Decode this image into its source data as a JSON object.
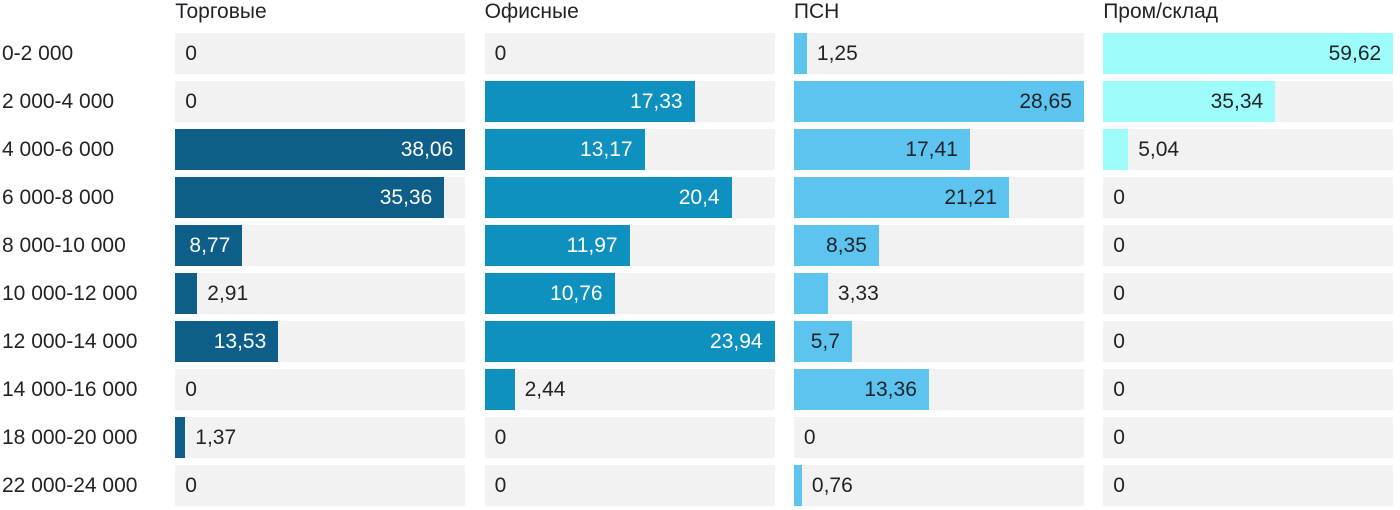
{
  "chart_data": {
    "type": "bar",
    "orientation": "horizontal",
    "title": "",
    "normalization": "per_series_max",
    "grid": false,
    "legend_position": "column-headers-top",
    "track_color": "#f2f2f2",
    "text_color": "#1f2328",
    "categories": [
      "0-2 000",
      "2 000-4 000",
      "4 000-6 000",
      "6 000-8 000",
      "8 000-10 000",
      "10 000-12 000",
      "12 000-14 000",
      "14 000-16 000",
      "18 000-20 000",
      "22 000-24 000"
    ],
    "series": [
      {
        "name": "Торговые",
        "color": "#0d5e88",
        "inside_text_color": "#ffffff",
        "values": [
          0,
          0,
          38.06,
          35.36,
          8.77,
          2.91,
          13.53,
          0,
          1.37,
          0
        ],
        "labels": [
          "0",
          "0",
          "38,06",
          "35,36",
          "8,77",
          "2,91",
          "13,53",
          "0",
          "1,37",
          "0"
        ]
      },
      {
        "name": "Офисные",
        "color": "#0e91bf",
        "inside_text_color": "#ffffff",
        "values": [
          0,
          17.33,
          13.17,
          20.4,
          11.97,
          10.76,
          23.94,
          2.44,
          0,
          0
        ],
        "labels": [
          "0",
          "17,33",
          "13,17",
          "20,4",
          "11,97",
          "10,76",
          "23,94",
          "2,44",
          "0",
          "0"
        ]
      },
      {
        "name": "ПСН",
        "color": "#5cc4ef",
        "inside_text_color": "#1f2328",
        "values": [
          1.25,
          28.65,
          17.41,
          21.21,
          8.35,
          3.33,
          5.7,
          13.36,
          0,
          0.76
        ],
        "labels": [
          "1,25",
          "28,65",
          "17,41",
          "21,21",
          "8,35",
          "3,33",
          "5,7",
          "13,36",
          "0",
          "0,76"
        ]
      },
      {
        "name": "Пром/склад",
        "color": "#9efdfb",
        "inside_text_color": "#1f2328",
        "values": [
          59.62,
          35.34,
          5.04,
          0,
          0,
          0,
          0,
          0,
          0,
          0
        ],
        "labels": [
          "59,62",
          "35,34",
          "5,04",
          "0",
          "0",
          "0",
          "0",
          "0",
          "0",
          "0"
        ]
      }
    ]
  }
}
